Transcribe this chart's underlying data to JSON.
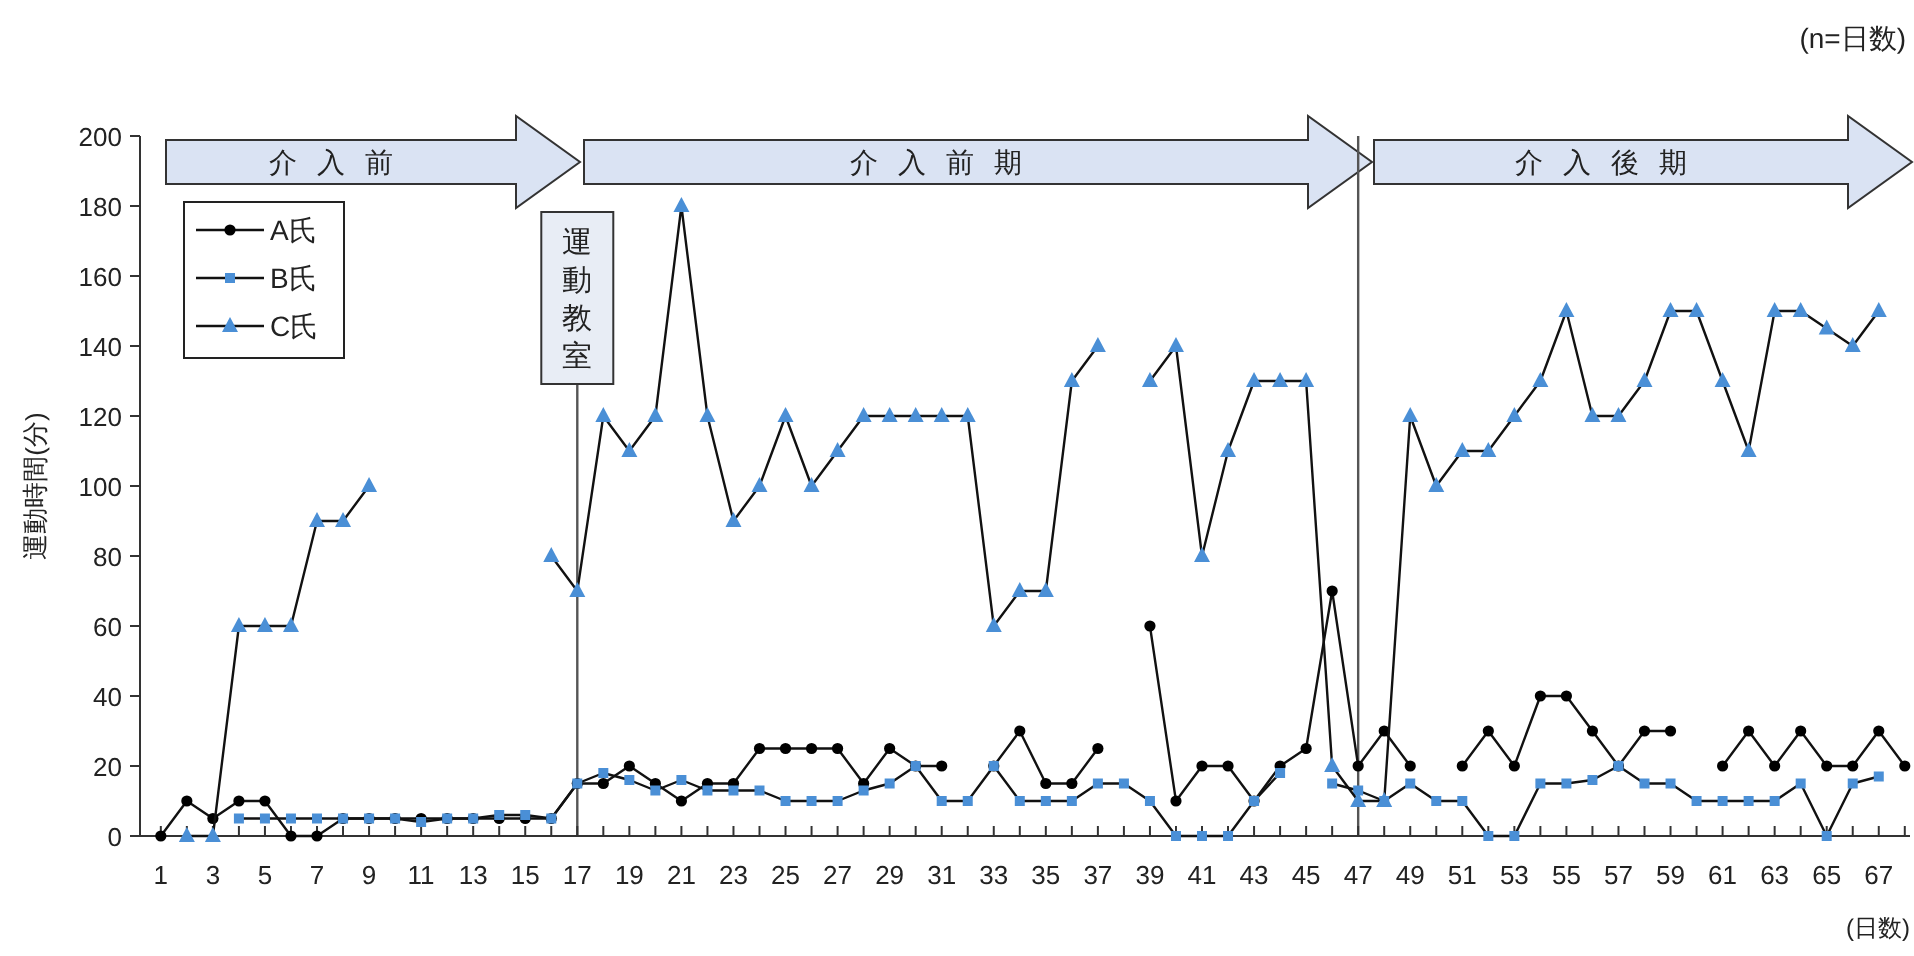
{
  "chart_data": {
    "type": "line",
    "ylabel": "運動時間(分)",
    "xlabel": "(日数)",
    "annotations": [
      "(n=日数)",
      "介入前",
      "介入前期",
      "介入後期"
    ],
    "x": [
      1,
      2,
      3,
      4,
      5,
      6,
      7,
      8,
      9,
      10,
      11,
      12,
      13,
      14,
      15,
      16,
      17,
      18,
      19,
      20,
      21,
      22,
      23,
      24,
      25,
      26,
      27,
      28,
      29,
      30,
      31,
      32,
      33,
      34,
      35,
      36,
      37,
      38,
      39,
      40,
      41,
      42,
      43,
      44,
      45,
      46,
      47,
      48,
      49,
      50,
      51,
      52,
      53,
      54,
      55,
      56,
      57,
      58,
      59,
      60,
      61,
      62,
      63,
      64,
      65,
      66,
      67,
      68
    ],
    "xlim": [
      0.2,
      68.2
    ],
    "xticks": [
      1,
      {
        "value": 2,
        "label": null
      },
      3,
      {
        "value": 4,
        "label": null
      },
      5,
      {
        "value": 6,
        "label": null
      },
      7,
      {
        "value": 8,
        "label": null
      },
      9,
      {
        "value": 10,
        "label": null
      },
      11,
      {
        "value": 12,
        "label": null
      },
      13,
      {
        "value": 14,
        "label": null
      },
      15,
      {
        "value": 16,
        "label": null
      },
      17,
      {
        "value": 18,
        "label": null
      },
      19,
      {
        "value": 20,
        "label": null
      },
      21,
      {
        "value": 22,
        "label": null
      },
      23,
      {
        "value": 24,
        "label": null
      },
      25,
      {
        "value": 26,
        "label": null
      },
      27,
      {
        "value": 28,
        "label": null
      },
      29,
      {
        "value": 30,
        "label": null
      },
      31,
      {
        "value": 32,
        "label": null
      },
      33,
      {
        "value": 34,
        "label": null
      },
      35,
      {
        "value": 36,
        "label": null
      },
      37,
      {
        "value": 38,
        "label": null
      },
      39,
      {
        "value": 40,
        "label": null
      },
      41,
      {
        "value": 42,
        "label": null
      },
      43,
      {
        "value": 44,
        "label": null
      },
      45,
      {
        "value": 46,
        "label": null
      },
      47,
      {
        "value": 48,
        "label": null
      },
      49,
      {
        "value": 50,
        "label": null
      },
      51,
      {
        "value": 52,
        "label": null
      },
      53,
      {
        "value": 54,
        "label": null
      },
      55,
      {
        "value": 56,
        "label": null
      },
      57,
      {
        "value": 58,
        "label": null
      },
      59,
      {
        "value": 60,
        "label": null
      },
      61,
      {
        "value": 62,
        "label": null
      },
      63,
      {
        "value": 64,
        "label": null
      },
      65,
      {
        "value": 66,
        "label": null
      },
      67,
      {
        "value": 68,
        "label": null
      }
    ],
    "ylim": [
      0,
      200
    ],
    "yticks": [
      0,
      20,
      40,
      60,
      80,
      100,
      120,
      140,
      160,
      180,
      200
    ],
    "grid": false,
    "legend": "top left",
    "series": [
      {
        "name": "A氏",
        "color": "#000000",
        "marker": "circle",
        "values": [
          0,
          10,
          5,
          10,
          10,
          0,
          0,
          5,
          5,
          5,
          5,
          5,
          5,
          5,
          5,
          5,
          15,
          15,
          20,
          15,
          10,
          15,
          15,
          25,
          25,
          25,
          25,
          15,
          25,
          20,
          20,
          null,
          20,
          30,
          15,
          15,
          25,
          null,
          60,
          10,
          20,
          20,
          10,
          20,
          25,
          70,
          20,
          30,
          20,
          null,
          20,
          30,
          20,
          40,
          40,
          30,
          20,
          30,
          30,
          null,
          20,
          30,
          20,
          30,
          20,
          20,
          30,
          20
        ]
      },
      {
        "name": "B氏",
        "color": "#4a8fd6",
        "marker": "square",
        "values": [
          null,
          null,
          null,
          5,
          5,
          5,
          5,
          5,
          5,
          5,
          4,
          5,
          5,
          6,
          6,
          5,
          15,
          18,
          16,
          13,
          16,
          13,
          13,
          13,
          10,
          10,
          10,
          13,
          15,
          20,
          10,
          10,
          20,
          10,
          10,
          10,
          15,
          15,
          10,
          0,
          0,
          0,
          10,
          18,
          null,
          15,
          13,
          10,
          15,
          10,
          10,
          0,
          0,
          15,
          15,
          16,
          20,
          15,
          15,
          10,
          10,
          10,
          10,
          15,
          0,
          15,
          17,
          null
        ]
      },
      {
        "name": "C氏",
        "color": "#4a8fd6",
        "marker": "triangle",
        "values": [
          null,
          0,
          0,
          60,
          60,
          60,
          90,
          90,
          100,
          null,
          null,
          null,
          null,
          null,
          null,
          80,
          70,
          120,
          110,
          120,
          180,
          120,
          90,
          100,
          120,
          100,
          110,
          120,
          120,
          120,
          120,
          120,
          60,
          70,
          70,
          130,
          140,
          null,
          130,
          140,
          80,
          110,
          130,
          130,
          130,
          20,
          10,
          10,
          120,
          100,
          110,
          110,
          120,
          130,
          150,
          120,
          120,
          130,
          150,
          150,
          130,
          110,
          150,
          150,
          145,
          140,
          150,
          null
        ]
      }
    ],
    "ref_lines": [
      {
        "axis": "x",
        "value": 17,
        "label": "運動教室"
      },
      {
        "axis": "x",
        "value": 47
      }
    ]
  }
}
